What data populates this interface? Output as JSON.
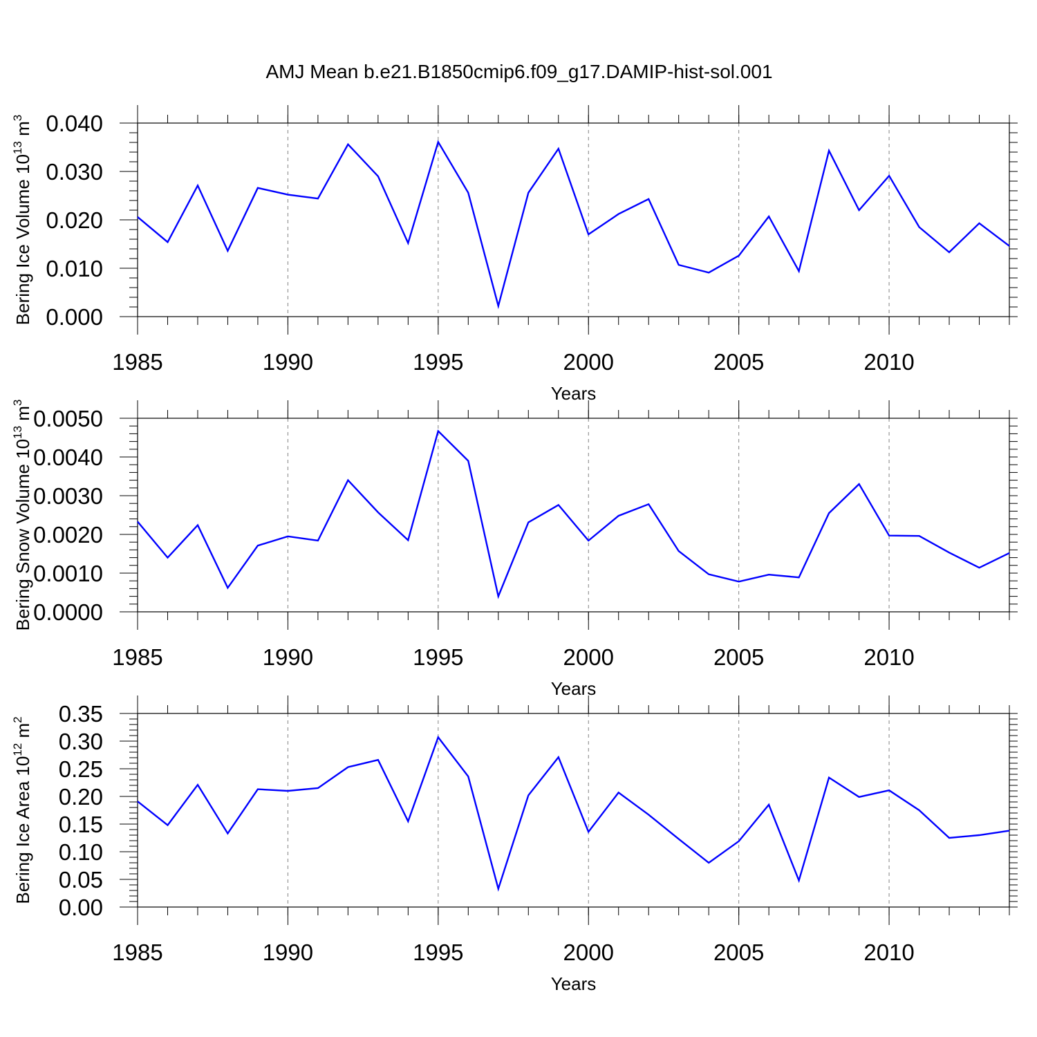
{
  "title": "AMJ Mean b.e21.B1850cmip6.f09_g17.DAMIP-hist-sol.001",
  "colors": {
    "line": "#0000ff",
    "axis": "#000000",
    "grid": "#808080"
  },
  "chart_data": [
    {
      "type": "line",
      "ylabel_main": "Bering Ice Volume 10",
      "ylabel_exp": "13",
      "ylabel_unit": " m",
      "ylabel_unit_exp": "3",
      "xlabel": "Years",
      "xlim": [
        1985,
        2014
      ],
      "ylim": [
        0,
        0.04
      ],
      "yticks": [
        0,
        0.01,
        0.02,
        0.03,
        0.04
      ],
      "ytick_labels": [
        "0.000",
        "0.010",
        "0.020",
        "0.030",
        "0.040"
      ],
      "xticks": [
        1985,
        1990,
        1995,
        2000,
        2005,
        2010
      ],
      "xtick_labels": [
        "1985",
        "1990",
        "1995",
        "2000",
        "2005",
        "2010"
      ],
      "x": [
        1985,
        1986,
        1987,
        1988,
        1989,
        1990,
        1991,
        1992,
        1993,
        1994,
        1995,
        1996,
        1997,
        1998,
        1999,
        2000,
        2001,
        2002,
        2003,
        2004,
        2005,
        2006,
        2007,
        2008,
        2009,
        2010,
        2011,
        2012,
        2013,
        2014
      ],
      "values": [
        0.0206,
        0.0154,
        0.0271,
        0.0136,
        0.0266,
        0.0252,
        0.0244,
        0.0356,
        0.029,
        0.0152,
        0.0361,
        0.0256,
        0.0022,
        0.0256,
        0.0347,
        0.017,
        0.0212,
        0.0243,
        0.0107,
        0.0091,
        0.0126,
        0.0207,
        0.0094,
        0.0343,
        0.022,
        0.0291,
        0.0185,
        0.0133,
        0.0193,
        0.0146
      ]
    },
    {
      "type": "line",
      "ylabel_main": "Bering Snow Volume 10",
      "ylabel_exp": "13",
      "ylabel_unit": " m",
      "ylabel_unit_exp": "3",
      "xlabel": "Years",
      "xlim": [
        1985,
        2014
      ],
      "ylim": [
        0,
        0.005
      ],
      "yticks": [
        0,
        0.001,
        0.002,
        0.003,
        0.004,
        0.005
      ],
      "ytick_labels": [
        "0.0000",
        "0.0010",
        "0.0020",
        "0.0030",
        "0.0040",
        "0.0050"
      ],
      "xticks": [
        1985,
        1990,
        1995,
        2000,
        2005,
        2010
      ],
      "xtick_labels": [
        "1985",
        "1990",
        "1995",
        "2000",
        "2005",
        "2010"
      ],
      "x": [
        1985,
        1986,
        1987,
        1988,
        1989,
        1990,
        1991,
        1992,
        1993,
        1994,
        1995,
        1996,
        1997,
        1998,
        1999,
        2000,
        2001,
        2002,
        2003,
        2004,
        2005,
        2006,
        2007,
        2008,
        2009,
        2010,
        2011,
        2012,
        2013,
        2014
      ],
      "values": [
        0.00233,
        0.0014,
        0.00224,
        0.00062,
        0.00171,
        0.00195,
        0.00184,
        0.0034,
        0.00257,
        0.00185,
        0.00467,
        0.0039,
        0.0004,
        0.00231,
        0.00276,
        0.00184,
        0.00248,
        0.00278,
        0.00157,
        0.00097,
        0.00078,
        0.00096,
        0.00089,
        0.00255,
        0.0033,
        0.00197,
        0.00196,
        0.00153,
        0.00114,
        0.00152
      ]
    },
    {
      "type": "line",
      "ylabel_main": "Bering Ice Area 10",
      "ylabel_exp": "12",
      "ylabel_unit": " m",
      "ylabel_unit_exp": "2",
      "xlabel": "Years",
      "xlim": [
        1985,
        2014
      ],
      "ylim": [
        0,
        0.35
      ],
      "yticks": [
        0,
        0.05,
        0.1,
        0.15,
        0.2,
        0.25,
        0.3,
        0.35
      ],
      "ytick_labels": [
        "0.00",
        "0.05",
        "0.10",
        "0.15",
        "0.20",
        "0.25",
        "0.30",
        "0.35"
      ],
      "xticks": [
        1985,
        1990,
        1995,
        2000,
        2005,
        2010
      ],
      "xtick_labels": [
        "1985",
        "1990",
        "1995",
        "2000",
        "2005",
        "2010"
      ],
      "x": [
        1985,
        1986,
        1987,
        1988,
        1989,
        1990,
        1991,
        1992,
        1993,
        1994,
        1995,
        1996,
        1997,
        1998,
        1999,
        2000,
        2001,
        2002,
        2003,
        2004,
        2005,
        2006,
        2007,
        2008,
        2009,
        2010,
        2011,
        2012,
        2013,
        2014
      ],
      "values": [
        0.191,
        0.148,
        0.221,
        0.133,
        0.213,
        0.21,
        0.215,
        0.253,
        0.266,
        0.155,
        0.307,
        0.236,
        0.033,
        0.202,
        0.271,
        0.136,
        0.207,
        0.167,
        0.123,
        0.08,
        0.119,
        0.185,
        0.048,
        0.234,
        0.199,
        0.211,
        0.175,
        0.125,
        0.13,
        0.138
      ]
    }
  ]
}
